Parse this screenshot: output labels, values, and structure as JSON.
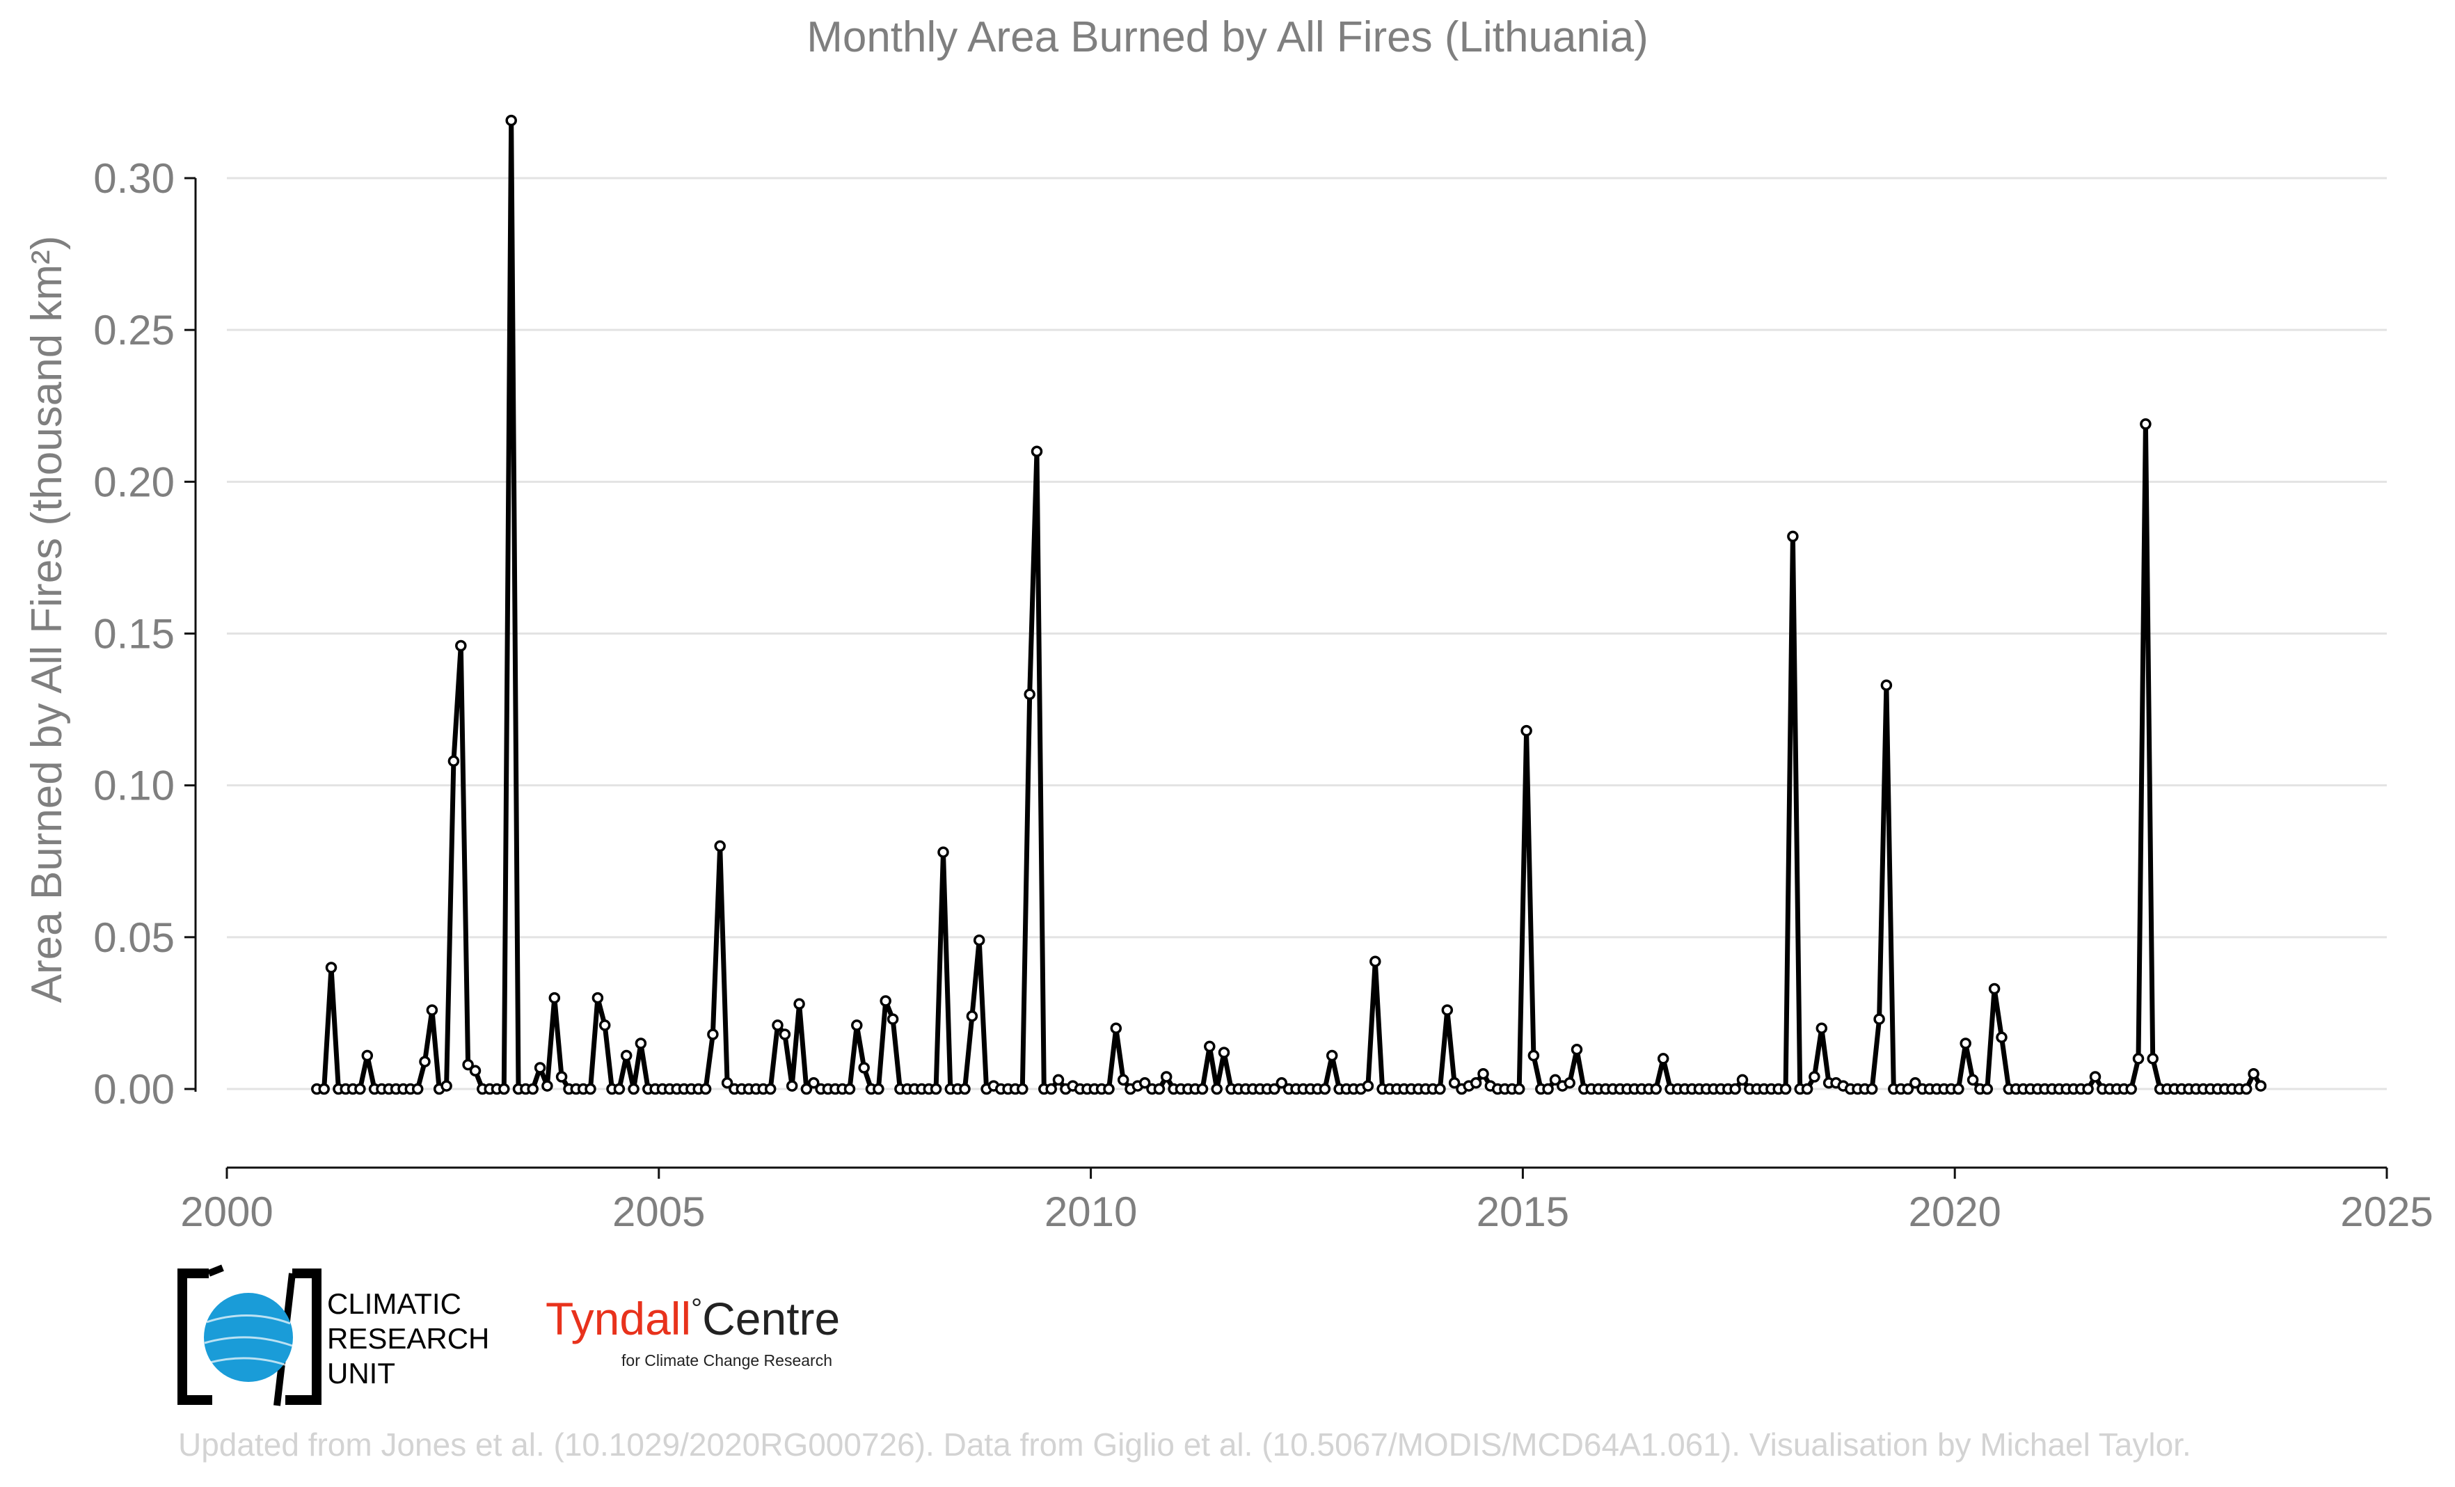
{
  "chart_data": {
    "type": "line",
    "title": "Monthly Area Burned by All Fires (Lithuania)",
    "ylabel": "Area Burned by All Fires (thousand km²)",
    "xlabel": "",
    "xlim": [
      2000,
      2025
    ],
    "ylim": [
      -0.025,
      0.32
    ],
    "x_ticks": [
      "2000",
      "2005",
      "2010",
      "2015",
      "2020",
      "2025"
    ],
    "y_ticks": [
      "0.00",
      "0.05",
      "0.10",
      "0.15",
      "0.20",
      "0.25",
      "0.30"
    ],
    "grid": true,
    "series": [
      {
        "start_date": "2001-01",
        "values": [
          0,
          0,
          0.04,
          0,
          0,
          0,
          0,
          0.011,
          0,
          0,
          0,
          0,
          0,
          0,
          0,
          0.009,
          0.026,
          0,
          0.001,
          0.108,
          0.146,
          0.008,
          0.006,
          0,
          0,
          0,
          0,
          0.319,
          0,
          0,
          0,
          0.007,
          0.001,
          0.03,
          0.004,
          0,
          0,
          0,
          0,
          0.03,
          0.021,
          0,
          0,
          0.011,
          0,
          0.015,
          0,
          0,
          0,
          0,
          0,
          0,
          0,
          0,
          0,
          0.018,
          0.08,
          0.002,
          0,
          0,
          0,
          0,
          0,
          0,
          0.021,
          0.018,
          0.001,
          0.028,
          0,
          0.002,
          0,
          0,
          0,
          0,
          0,
          0.021,
          0.007,
          0,
          0,
          0.029,
          0.023,
          0,
          0,
          0,
          0,
          0,
          0,
          0.078,
          0,
          0,
          0,
          0.024,
          0.049,
          0,
          0.001,
          0,
          0,
          0,
          0,
          0.13,
          0.21,
          0,
          0,
          0.003,
          0,
          0.001,
          0,
          0,
          0,
          0,
          0,
          0.02,
          0.003,
          0,
          0.001,
          0.002,
          0,
          0,
          0.004,
          0,
          0,
          0,
          0,
          0,
          0.014,
          0,
          0.012,
          0,
          0,
          0,
          0,
          0,
          0,
          0,
          0.002,
          0,
          0,
          0,
          0,
          0,
          0,
          0.011,
          0,
          0,
          0,
          0,
          0.001,
          0.042,
          0,
          0,
          0,
          0,
          0,
          0,
          0,
          0,
          0,
          0.026,
          0.002,
          0,
          0.001,
          0.002,
          0.005,
          0.001,
          0,
          0,
          0,
          0,
          0.118,
          0.011,
          0,
          0,
          0.003,
          0.001,
          0.002,
          0.013,
          0,
          0,
          0,
          0,
          0,
          0,
          0,
          0,
          0,
          0,
          0,
          0.01,
          0,
          0,
          0,
          0,
          0,
          0,
          0,
          0,
          0,
          0,
          0.003,
          0,
          0,
          0,
          0,
          0,
          0,
          0.182,
          0,
          0,
          0.004,
          0.02,
          0.002,
          0.002,
          0.001,
          0,
          0,
          0,
          0,
          0.023,
          0.133,
          0,
          0,
          0,
          0.002,
          0,
          0,
          0,
          0,
          0,
          0,
          0.015,
          0.003,
          0,
          0,
          0.033,
          0.017,
          0,
          0,
          0,
          0,
          0,
          0,
          0,
          0,
          0,
          0,
          0,
          0,
          0.004,
          0,
          0,
          0,
          0,
          0,
          0.01,
          0.219,
          0.01,
          0,
          0,
          0,
          0,
          0,
          0,
          0,
          0,
          0,
          0,
          0,
          0,
          0,
          0.005,
          0.001
        ]
      }
    ]
  },
  "logos": {
    "cru_lines": [
      "CLIMATIC",
      "RESEARCH",
      "UNIT"
    ],
    "tyndall_brand": "Tyndall",
    "tyndall_degree": "°",
    "tyndall_centre": "Centre",
    "tyndall_sub": "for Climate Change Research",
    "colors": {
      "cru_blue": "#1a9cd8",
      "tyndall_red": "#e8321c"
    }
  },
  "footer": {
    "credit": "Updated from Jones et al. (10.1029/2020RG000726). Data from Giglio et al. (10.5067/MODIS/MCD64A1.061). Visualisation by Michael Taylor."
  }
}
